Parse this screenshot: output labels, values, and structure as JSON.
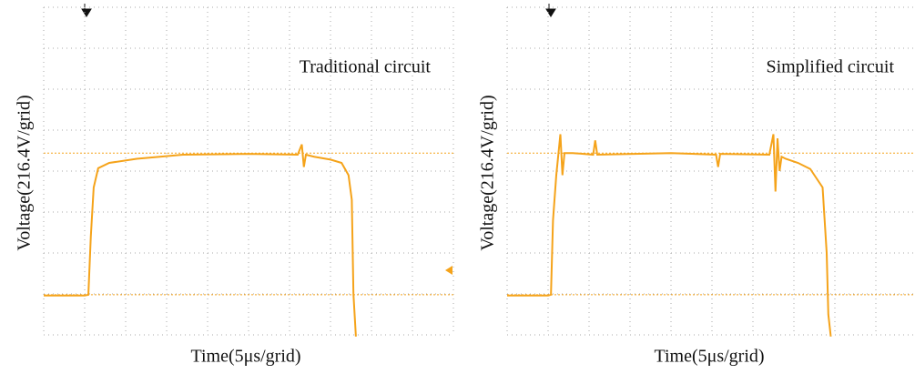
{
  "chart_data": [
    {
      "type": "line",
      "annotation": "Traditional circuit",
      "xlabel": "Time(5μs/grid)",
      "ylabel": "Voltage(216.4V/grid)",
      "xlim": [
        0,
        10
      ],
      "ylim": [
        0,
        8
      ],
      "xticks": [
        0,
        1,
        2,
        3,
        4,
        5,
        6,
        7,
        8,
        9,
        10
      ],
      "yticks": [
        0,
        1,
        2,
        3,
        4,
        5,
        6,
        7,
        8
      ],
      "grid": true,
      "hlines": [
        4.44,
        0.98
      ],
      "series": [
        {
          "color": "#f5a31a",
          "x": [
            0,
            1.0,
            1.09,
            1.15,
            1.22,
            1.33,
            1.6,
            2.27,
            3.4,
            5.0,
            6.2,
            6.3,
            6.35,
            6.4,
            6.6,
            7.0,
            7.27,
            7.44,
            7.52,
            7.56,
            7.62
          ],
          "values": [
            0.96,
            0.96,
            0.98,
            2.4,
            3.6,
            4.07,
            4.2,
            4.3,
            4.4,
            4.42,
            4.4,
            4.65,
            4.1,
            4.4,
            4.35,
            4.28,
            4.2,
            3.9,
            3.3,
            1.0,
            -0.04
          ]
        }
      ]
    },
    {
      "type": "line",
      "annotation": "Simplified circuit",
      "xlabel": "Time(5μs/grid)",
      "ylabel": "Voltage(216.4V/grid)",
      "xlim": [
        0,
        10
      ],
      "ylim": [
        0,
        8
      ],
      "xticks": [
        0,
        1,
        2,
        3,
        4,
        5,
        6,
        7,
        8,
        9,
        10
      ],
      "yticks": [
        0,
        1,
        2,
        3,
        4,
        5,
        6,
        7,
        8
      ],
      "grid": true,
      "hlines": [
        4.44,
        0.98
      ],
      "series": [
        {
          "color": "#f5a31a",
          "x": [
            0,
            1.0,
            1.07,
            1.12,
            1.2,
            1.3,
            1.35,
            1.4,
            1.6,
            2.1,
            2.15,
            2.2,
            4.0,
            5.1,
            5.15,
            5.2,
            6.4,
            6.5,
            6.55,
            6.6,
            6.65,
            6.7,
            6.8,
            7.1,
            7.4,
            7.5,
            7.7,
            7.8,
            7.84,
            7.9
          ],
          "values": [
            0.96,
            0.96,
            0.98,
            2.8,
            3.9,
            4.9,
            3.9,
            4.44,
            4.44,
            4.4,
            4.75,
            4.4,
            4.44,
            4.4,
            4.1,
            4.42,
            4.4,
            4.9,
            3.5,
            4.8,
            4.0,
            4.35,
            4.3,
            4.2,
            4.05,
            3.9,
            3.6,
            2.0,
            0.5,
            -0.04
          ]
        }
      ]
    }
  ]
}
